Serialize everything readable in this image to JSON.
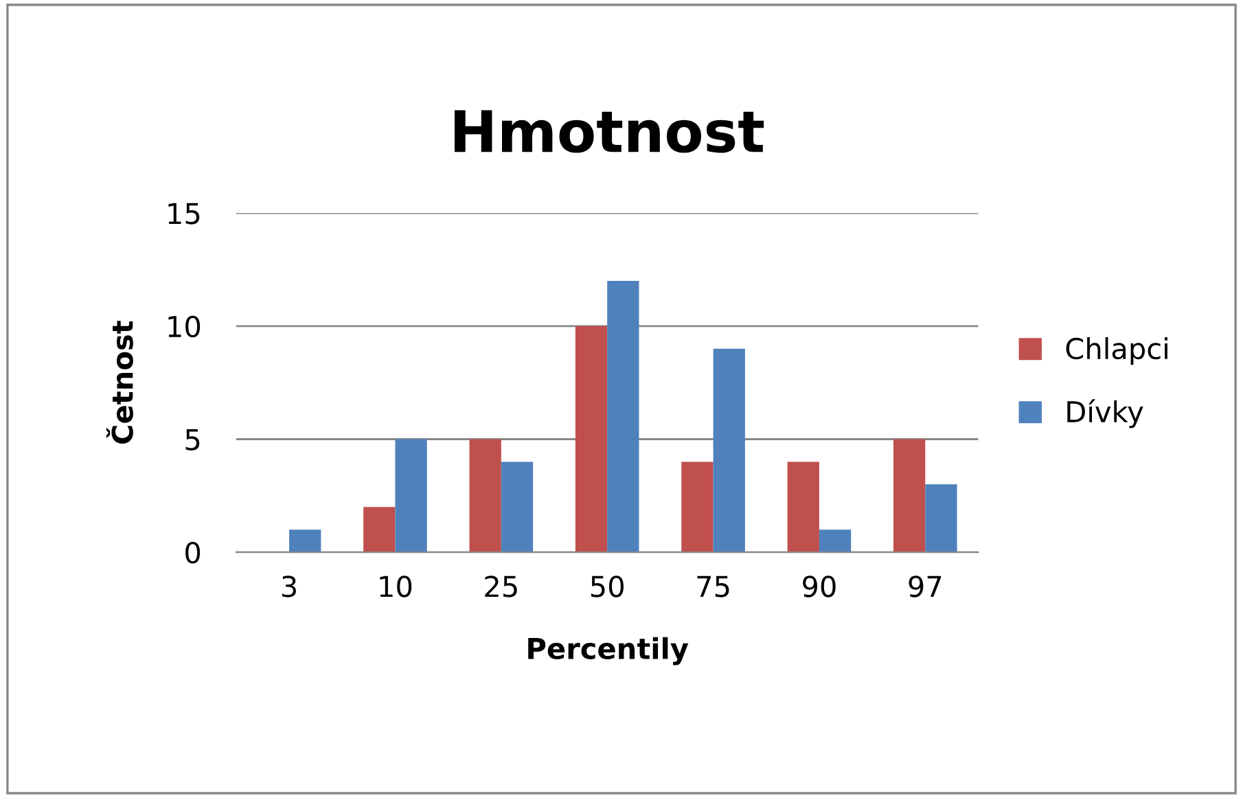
{
  "chart_data": {
    "type": "bar",
    "title": "Hmotnost",
    "xlabel": "Percentily",
    "ylabel": "Četnost",
    "categories": [
      "3",
      "10",
      "25",
      "50",
      "75",
      "90",
      "97"
    ],
    "series": [
      {
        "name": "Chlapci",
        "color": "#c0504d",
        "values": [
          0,
          2,
          5,
          10,
          4,
          4,
          5
        ]
      },
      {
        "name": "Dívky",
        "color": "#4f81bd",
        "values": [
          1,
          5,
          4,
          12,
          9,
          1,
          3
        ]
      }
    ],
    "ylim": [
      0,
      15
    ],
    "yticks": [
      0,
      5,
      10,
      15
    ],
    "grid": "y",
    "legend": "right"
  }
}
